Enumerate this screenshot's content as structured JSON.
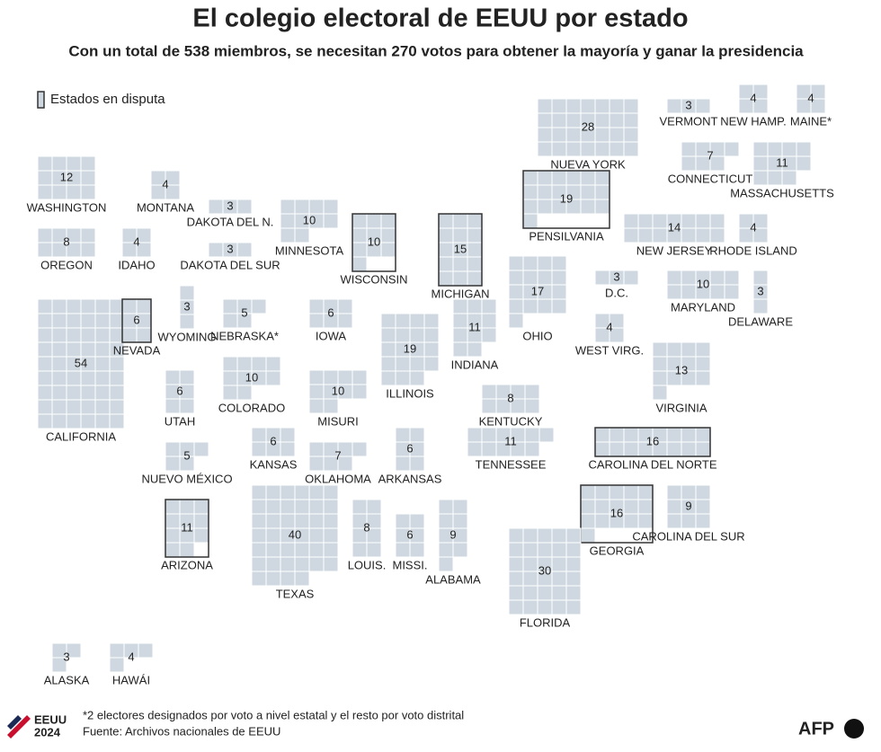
{
  "header": {
    "title": "El colegio electoral de EEUU por estado",
    "subtitle": "Con un total de 538 miembros, se necesitan 270 votos para obtener la mayoría y ganar la presidencia"
  },
  "legend": {
    "label": "Estados en disputa"
  },
  "states": [
    {
      "name": "WASHINGTON",
      "votes": 12,
      "contested": false
    },
    {
      "name": "OREGON",
      "votes": 8,
      "contested": false
    },
    {
      "name": "CALIFORNIA",
      "votes": 54,
      "contested": false
    },
    {
      "name": "MONTANA",
      "votes": 4,
      "contested": false
    },
    {
      "name": "IDAHO",
      "votes": 4,
      "contested": false
    },
    {
      "name": "NEVADA",
      "votes": 6,
      "contested": true
    },
    {
      "name": "UTAH",
      "votes": 6,
      "contested": false
    },
    {
      "name": "ARIZONA",
      "votes": 11,
      "contested": true
    },
    {
      "name": "WYOMING",
      "votes": 3,
      "contested": false
    },
    {
      "name": "COLORADO",
      "votes": 10,
      "contested": false
    },
    {
      "name": "NUEVO MÉXICO",
      "votes": 5,
      "contested": false
    },
    {
      "name": "DAKOTA DEL N.",
      "votes": 3,
      "contested": false
    },
    {
      "name": "DAKOTA DEL SUR",
      "votes": 3,
      "contested": false
    },
    {
      "name": "NEBRASKA*",
      "votes": 5,
      "contested": false
    },
    {
      "name": "KANSAS",
      "votes": 6,
      "contested": false
    },
    {
      "name": "OKLAHOMA",
      "votes": 7,
      "contested": false
    },
    {
      "name": "TEXAS",
      "votes": 40,
      "contested": false
    },
    {
      "name": "MINNESOTA",
      "votes": 10,
      "contested": false
    },
    {
      "name": "IOWA",
      "votes": 6,
      "contested": false
    },
    {
      "name": "MISURI",
      "votes": 10,
      "contested": false
    },
    {
      "name": "ARKANSAS",
      "votes": 6,
      "contested": false
    },
    {
      "name": "LOUIS.",
      "votes": 8,
      "contested": false
    },
    {
      "name": "MISSI.",
      "votes": 6,
      "contested": false
    },
    {
      "name": "WISCONSIN",
      "votes": 10,
      "contested": true
    },
    {
      "name": "ILLINOIS",
      "votes": 19,
      "contested": false
    },
    {
      "name": "MICHIGAN",
      "votes": 15,
      "contested": true
    },
    {
      "name": "INDIANA",
      "votes": 11,
      "contested": false
    },
    {
      "name": "KENTUCKY",
      "votes": 8,
      "contested": false
    },
    {
      "name": "TENNESSEE",
      "votes": 11,
      "contested": false
    },
    {
      "name": "ALABAMA",
      "votes": 9,
      "contested": false
    },
    {
      "name": "GEORGIA",
      "votes": 16,
      "contested": true
    },
    {
      "name": "FLORIDA",
      "votes": 30,
      "contested": false
    },
    {
      "name": "CAROLINA DEL SUR",
      "votes": 9,
      "contested": false
    },
    {
      "name": "CAROLINA DEL NORTE",
      "votes": 16,
      "contested": true
    },
    {
      "name": "VIRGINIA",
      "votes": 13,
      "contested": false
    },
    {
      "name": "WEST VIRG.",
      "votes": 4,
      "contested": false
    },
    {
      "name": "OHIO",
      "votes": 17,
      "contested": false
    },
    {
      "name": "PENSILVANIA",
      "votes": 19,
      "contested": true
    },
    {
      "name": "NUEVA YORK",
      "votes": 28,
      "contested": false
    },
    {
      "name": "D.C.",
      "votes": 3,
      "contested": false
    },
    {
      "name": "MARYLAND",
      "votes": 10,
      "contested": false
    },
    {
      "name": "DELAWARE",
      "votes": 3,
      "contested": false
    },
    {
      "name": "NEW JERSEY",
      "votes": 14,
      "contested": false
    },
    {
      "name": "RHODE ISLAND",
      "votes": 4,
      "contested": false
    },
    {
      "name": "CONNECTICUT",
      "votes": 7,
      "contested": false
    },
    {
      "name": "MASSACHUSETTS",
      "votes": 11,
      "contested": false
    },
    {
      "name": "VERMONT",
      "votes": 3,
      "contested": false
    },
    {
      "name": "NEW HAMP.",
      "votes": 4,
      "contested": false
    },
    {
      "name": "MAINE*",
      "votes": 4,
      "contested": false
    },
    {
      "name": "ALASKA",
      "votes": 3,
      "contested": false
    },
    {
      "name": "HAWÁI",
      "votes": 4,
      "contested": false
    }
  ],
  "footer": {
    "note": "*2 electores designados por voto a nivel estatal y el resto por voto distrital",
    "source": "Fuente: Archivos nacionales de EEUU",
    "logo_top": "EEUU",
    "logo_bottom": "2024",
    "brand": "AFP"
  }
}
